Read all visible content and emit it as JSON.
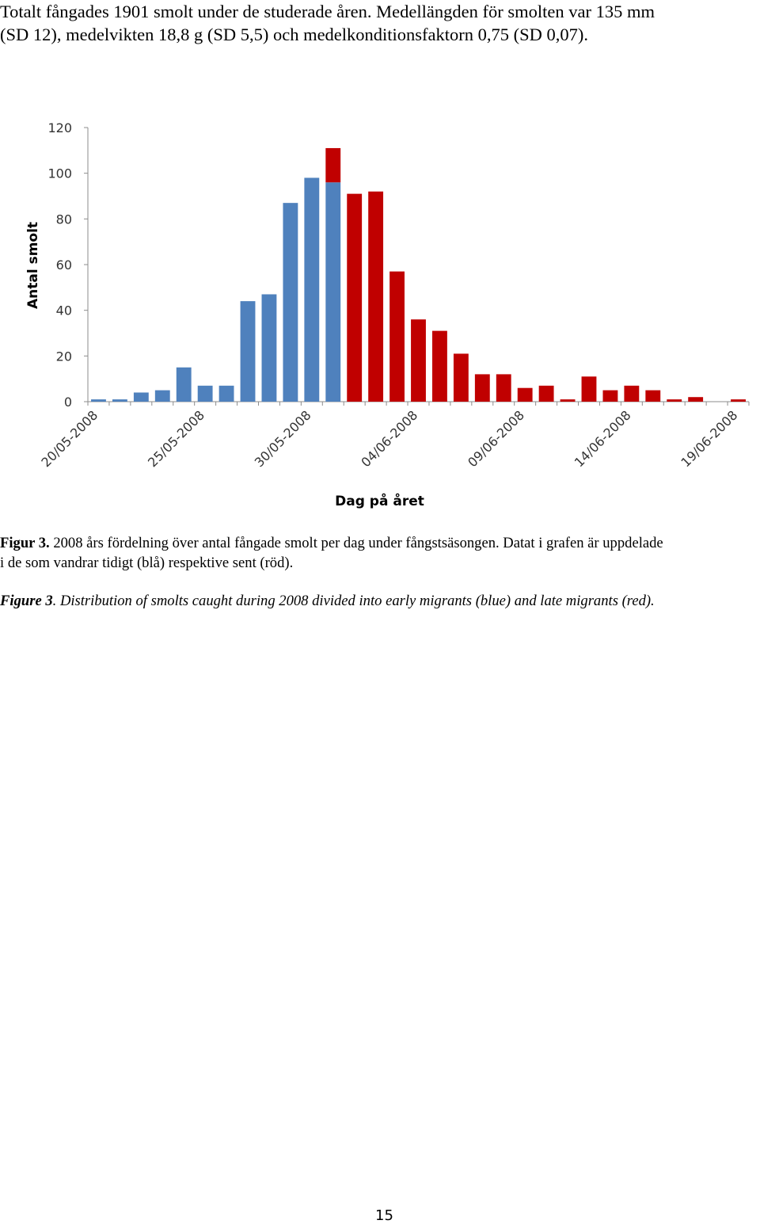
{
  "intro": {
    "line1": "Totalt fångades 1901 smolt under de studerade åren. Medellängden för smolten var 135 mm",
    "line2": "(SD 12), medelvikten 18,8 g (SD 5,5) och medelkonditionsfaktorn 0,75 (SD 0,07)."
  },
  "chart_data": {
    "type": "bar",
    "stacked": true,
    "xlabel": "Dag på året",
    "ylabel": "Antal smolt",
    "ylim": [
      0,
      120
    ],
    "y_ticks": [
      0,
      20,
      40,
      60,
      80,
      100,
      120
    ],
    "x_tick_labels": [
      "20/05-2008",
      "25/05-2008",
      "30/05-2008",
      "04/06-2008",
      "09/06-2008",
      "14/06-2008",
      "19/06-2008"
    ],
    "categories": [
      "20/05-2008",
      "21/05-2008",
      "22/05-2008",
      "23/05-2008",
      "24/05-2008",
      "25/05-2008",
      "26/05-2008",
      "27/05-2008",
      "28/05-2008",
      "29/05-2008",
      "30/05-2008",
      "31/05-2008",
      "01/06-2008",
      "02/06-2008",
      "03/06-2008",
      "04/06-2008",
      "05/06-2008",
      "06/06-2008",
      "07/06-2008",
      "08/06-2008",
      "09/06-2008",
      "10/06-2008",
      "11/06-2008",
      "12/06-2008",
      "13/06-2008",
      "14/06-2008",
      "15/06-2008",
      "16/06-2008",
      "17/06-2008",
      "18/06-2008",
      "19/06-2008"
    ],
    "series": [
      {
        "color": "#4f81bd",
        "values": [
          1,
          1,
          4,
          5,
          15,
          7,
          7,
          44,
          47,
          87,
          98,
          96,
          0,
          0,
          0,
          0,
          0,
          0,
          0,
          0,
          0,
          0,
          0,
          0,
          0,
          0,
          0,
          0,
          0,
          0,
          0
        ]
      },
      {
        "color": "#c00000",
        "values": [
          0,
          0,
          0,
          0,
          0,
          0,
          0,
          0,
          0,
          0,
          0,
          15,
          91,
          92,
          57,
          36,
          31,
          21,
          12,
          12,
          6,
          7,
          1,
          11,
          5,
          7,
          5,
          1,
          2,
          0,
          1
        ]
      }
    ],
    "grid": false,
    "legend": "none"
  },
  "caption_sv": {
    "label": "Figur 3.",
    "text_line1": " 2008 års fördelning över antal fångade smolt per dag under fångstsäsongen. Datat i grafen är uppdelade",
    "text_line2": "i de som vandrar tidigt (blå) respektive sent (röd)."
  },
  "caption_en": {
    "label": "Figure 3",
    "text": ".  Distribution of smolts caught during 2008 divided into early migrants (blue) and late migrants (red)."
  },
  "page_number": "15"
}
